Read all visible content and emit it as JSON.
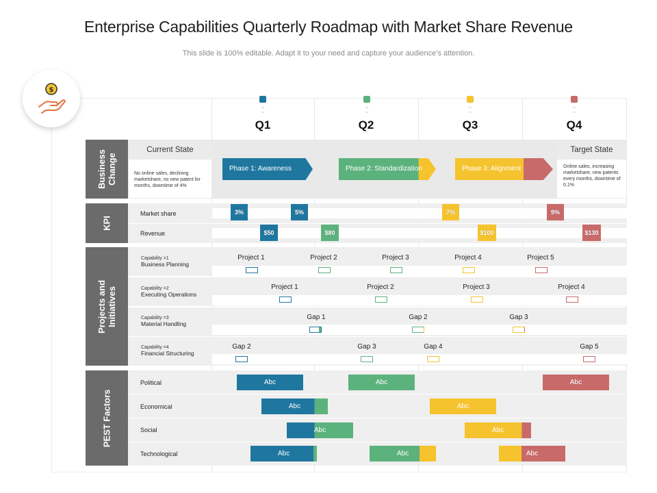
{
  "title": "Enterprise Capabilities Quarterly Roadmap with Market Share Revenue",
  "subtitle": "This slide is 100% editable. Adapt it to your need and capture your audience’s attention.",
  "colors": {
    "blue": "#1f77a0",
    "green": "#5cb27d",
    "yellow": "#f5c32e",
    "red": "#c86a6a",
    "gray": "#6b6b6b"
  },
  "icon": "hand-holding-coin-icon",
  "quarters": [
    "Q1",
    "Q2",
    "Q3",
    "Q4"
  ],
  "sections": {
    "business_change": "Business Change",
    "kpi": "KPI",
    "projects": "Projects and Initiatives",
    "pest": "PEST Factors"
  },
  "business_change": {
    "current_state": "Current State",
    "current_text": "No online sales, declining marketshare, no new patent for months, downtime of 4%",
    "target_state": "Target State",
    "target_text": "Online sales, increasing marketshare, new patents every months, downtime of 0.1%",
    "phases": [
      "Phase 1: Awareness",
      "Phase 2: Standardization",
      "Phase 3: Alignment"
    ]
  },
  "kpi": {
    "market_share_label": "Market share",
    "revenue_label": "Revenue",
    "market_share": [
      "3%",
      "5%",
      "7%",
      "9%"
    ],
    "revenue": [
      "$50",
      "$80",
      "$100",
      "$130"
    ]
  },
  "capabilities": [
    {
      "num": "Capability =1",
      "name": "Business Planning",
      "items": [
        "Project 1",
        "Project 2",
        "Project 3",
        "Project 4",
        "Project 5"
      ]
    },
    {
      "num": "Capability =2",
      "name": "Executing Operations",
      "items": [
        "Project 1",
        "Project 2",
        "Project 3",
        "Project 4"
      ]
    },
    {
      "num": "Capability =3",
      "name": "Material Handling",
      "items": [
        "Gap 1",
        "Gap 2",
        "Gap 3"
      ]
    },
    {
      "num": "Capability =4",
      "name": "Financial Structuring",
      "items": [
        "Gap 2",
        "Gap 3",
        "Gap 4",
        "Gap 5"
      ]
    }
  ],
  "pest": {
    "labels": [
      "Political",
      "Economical",
      "Social",
      "Technological"
    ],
    "chip_text": "Abc"
  }
}
